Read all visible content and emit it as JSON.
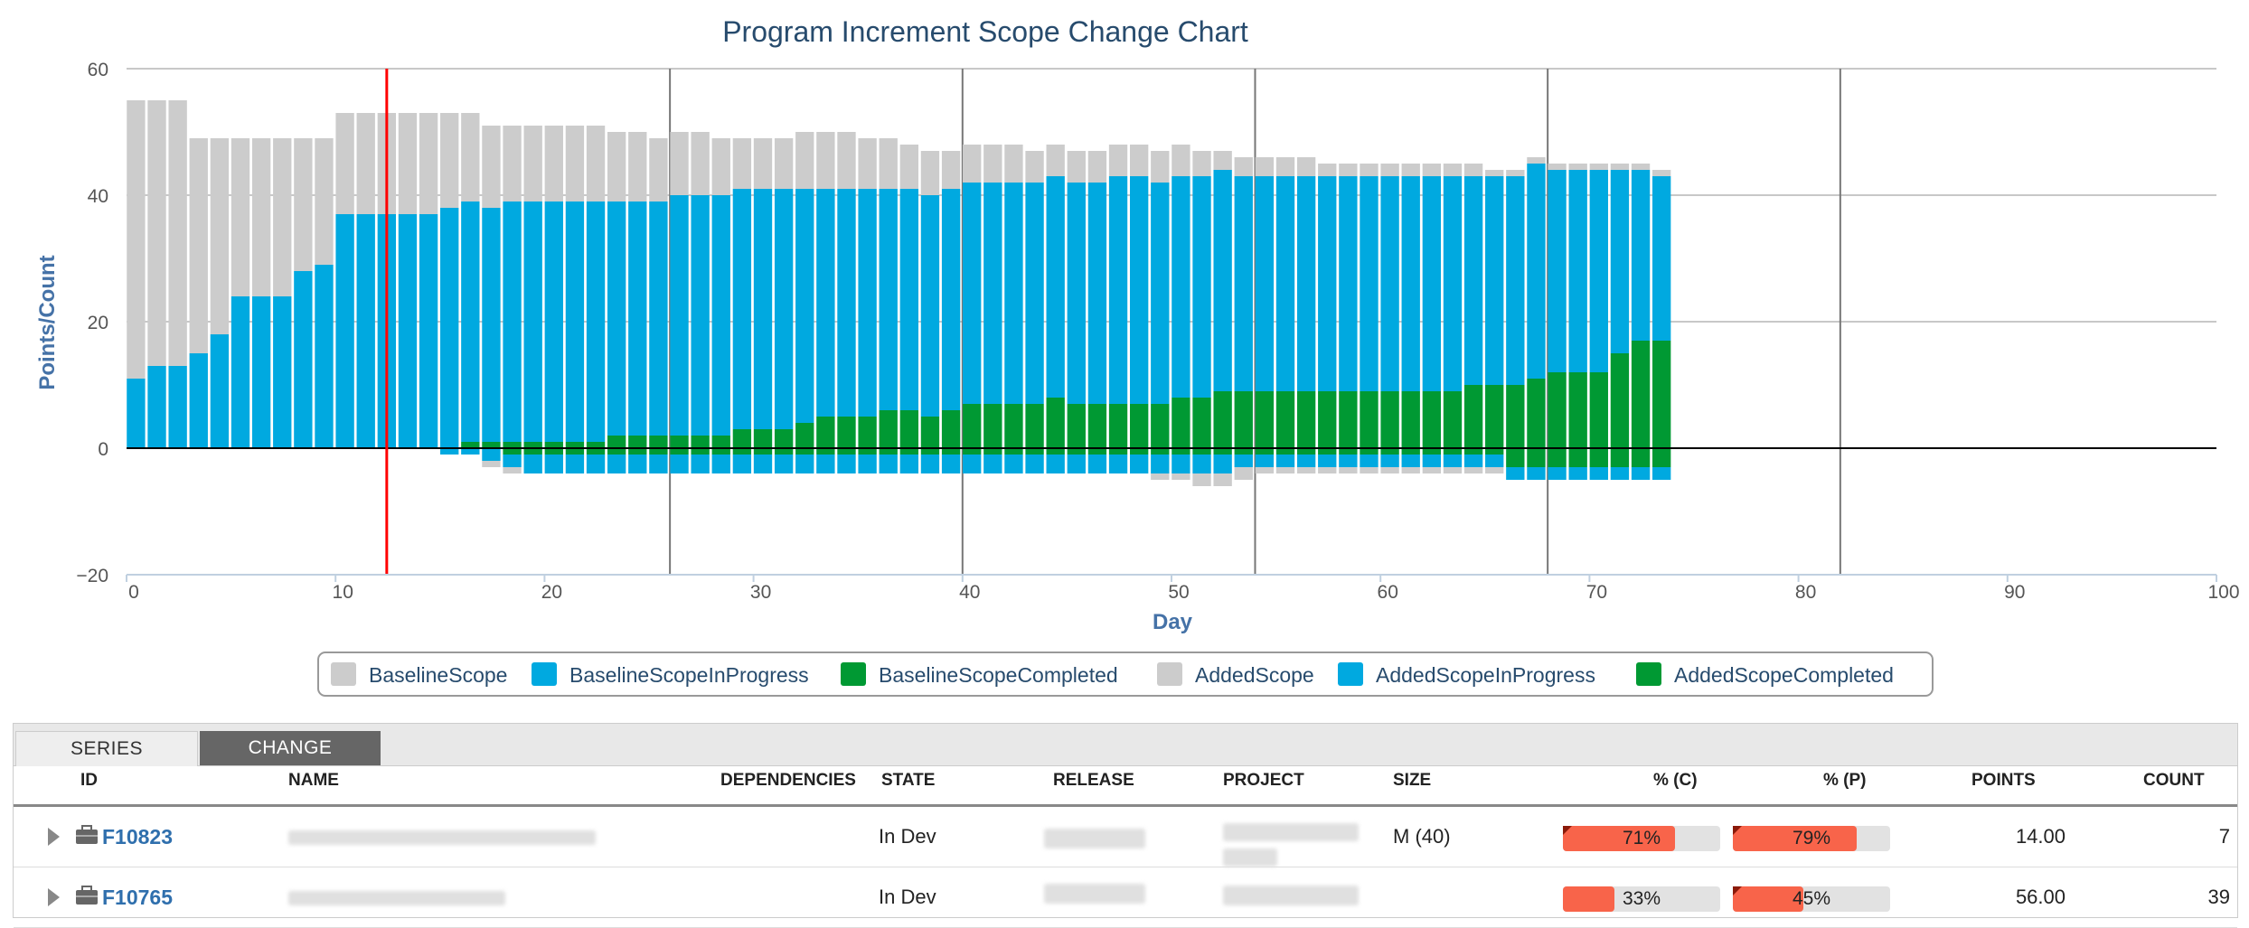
{
  "chart_data": {
    "type": "bar",
    "title": "Program Increment Scope Change Chart",
    "xlabel": "Day",
    "ylabel": "Points/Count",
    "xlim": [
      0,
      100
    ],
    "ylim": [
      -20,
      60
    ],
    "x_ticks": [
      0,
      10,
      20,
      30,
      40,
      50,
      60,
      70,
      80,
      90,
      100
    ],
    "y_ticks": [
      -20,
      0,
      20,
      40,
      60
    ],
    "legend_position": "bottom",
    "grid": true,
    "today_marker_day": 12,
    "iteration_lines_days": [
      26,
      40,
      54,
      68,
      82
    ],
    "days": [
      0,
      1,
      2,
      3,
      4,
      5,
      6,
      7,
      8,
      9,
      10,
      11,
      12,
      13,
      14,
      15,
      16,
      17,
      18,
      19,
      20,
      21,
      22,
      23,
      24,
      25,
      26,
      27,
      28,
      29,
      30,
      31,
      32,
      33,
      34,
      35,
      36,
      37,
      38,
      39,
      40,
      41,
      42,
      43,
      44,
      45,
      46,
      47,
      48,
      49,
      50,
      51,
      52,
      53,
      54,
      55,
      56,
      57,
      58,
      59,
      60,
      61,
      62,
      63,
      64,
      65,
      66,
      67,
      68,
      69,
      70,
      71,
      72,
      73
    ],
    "series": [
      {
        "name": "BaselineScope",
        "color": "#cccccc",
        "values": [
          44,
          42,
          42,
          34,
          31,
          25,
          25,
          25,
          21,
          20,
          16,
          16,
          16,
          16,
          16,
          15,
          14,
          13,
          12,
          12,
          12,
          12,
          12,
          11,
          11,
          10,
          10,
          10,
          9,
          8,
          8,
          8,
          9,
          9,
          9,
          8,
          8,
          7,
          7,
          6,
          6,
          6,
          6,
          5,
          5,
          5,
          5,
          5,
          5,
          5,
          5,
          4,
          3,
          3,
          3,
          3,
          3,
          2,
          2,
          2,
          2,
          2,
          2,
          2,
          2,
          1,
          1,
          1,
          1,
          1,
          1,
          1,
          1,
          1
        ]
      },
      {
        "name": "BaselineScopeInProgress",
        "color": "#00a9e0",
        "values": [
          11,
          13,
          13,
          15,
          18,
          24,
          24,
          24,
          28,
          29,
          37,
          37,
          37,
          37,
          37,
          38,
          38,
          37,
          38,
          38,
          38,
          38,
          38,
          37,
          37,
          37,
          38,
          38,
          38,
          38,
          38,
          38,
          37,
          36,
          36,
          36,
          35,
          35,
          35,
          35,
          35,
          35,
          35,
          35,
          35,
          35,
          35,
          36,
          36,
          35,
          35,
          35,
          35,
          34,
          34,
          34,
          34,
          34,
          34,
          34,
          34,
          34,
          34,
          34,
          33,
          33,
          33,
          34,
          32,
          32,
          32,
          29,
          27,
          26
        ]
      },
      {
        "name": "BaselineScopeCompleted",
        "color": "#009933",
        "values": [
          0,
          0,
          0,
          0,
          0,
          0,
          0,
          0,
          0,
          0,
          0,
          0,
          0,
          0,
          0,
          0,
          1,
          1,
          1,
          1,
          1,
          1,
          1,
          2,
          2,
          2,
          2,
          2,
          2,
          3,
          3,
          3,
          4,
          5,
          5,
          5,
          6,
          6,
          5,
          6,
          7,
          7,
          7,
          7,
          8,
          7,
          7,
          7,
          7,
          7,
          8,
          8,
          9,
          9,
          9,
          9,
          9,
          9,
          9,
          9,
          9,
          9,
          9,
          9,
          10,
          10,
          10,
          11,
          12,
          12,
          12,
          15,
          17,
          17
        ]
      },
      {
        "name": "AddedScope",
        "color": "#cccccc",
        "values": [
          0,
          0,
          0,
          0,
          0,
          0,
          0,
          0,
          0,
          0,
          0,
          0,
          0,
          0,
          0,
          0,
          0,
          -1,
          -1,
          0,
          0,
          0,
          0,
          0,
          0,
          0,
          0,
          0,
          0,
          0,
          0,
          0,
          0,
          0,
          0,
          0,
          0,
          0,
          0,
          0,
          0,
          0,
          0,
          0,
          0,
          0,
          0,
          0,
          0,
          -1,
          -1,
          -2,
          -2,
          -2,
          -1,
          -1,
          -1,
          -1,
          -1,
          -1,
          -1,
          -1,
          -1,
          -1,
          -1,
          -1,
          0,
          0,
          0,
          0,
          0,
          0,
          0,
          0
        ]
      },
      {
        "name": "AddedScopeInProgress",
        "color": "#00a9e0",
        "values": [
          0,
          0,
          0,
          0,
          0,
          0,
          0,
          0,
          0,
          0,
          0,
          0,
          0,
          0,
          0,
          -1,
          -1,
          -2,
          -2,
          -3,
          -3,
          -3,
          -3,
          -3,
          -3,
          -3,
          -3,
          -3,
          -3,
          -3,
          -3,
          -3,
          -3,
          -3,
          -3,
          -3,
          -3,
          -3,
          -3,
          -3,
          -3,
          -3,
          -3,
          -3,
          -3,
          -3,
          -3,
          -3,
          -3,
          -3,
          -3,
          -3,
          -3,
          -2,
          -2,
          -2,
          -2,
          -2,
          -2,
          -2,
          -2,
          -2,
          -2,
          -2,
          -2,
          -2,
          -2,
          -2,
          -2,
          -2,
          -2,
          -2,
          -2,
          -2
        ]
      },
      {
        "name": "AddedScopeCompleted",
        "color": "#009933",
        "values": [
          0,
          0,
          0,
          0,
          0,
          0,
          0,
          0,
          0,
          0,
          0,
          0,
          0,
          0,
          0,
          0,
          0,
          0,
          -1,
          -1,
          -1,
          -1,
          -1,
          -1,
          -1,
          -1,
          -1,
          -1,
          -1,
          -1,
          -1,
          -1,
          -1,
          -1,
          -1,
          -1,
          -1,
          -1,
          -1,
          -1,
          -1,
          -1,
          -1,
          -1,
          -1,
          -1,
          -1,
          -1,
          -1,
          -1,
          -1,
          -1,
          -1,
          -1,
          -1,
          -1,
          -1,
          -1,
          -1,
          -1,
          -1,
          -1,
          -1,
          -1,
          -1,
          -1,
          -3,
          -3,
          -3,
          -3,
          -3,
          -3,
          -3,
          -3
        ]
      }
    ]
  },
  "grid": {
    "tabs": [
      "SERIES",
      "CHANGE"
    ],
    "active_tab": "CHANGE",
    "columns": {
      "id": "ID",
      "name": "NAME",
      "dependencies": "DEPENDENCIES",
      "state": "STATE",
      "release": "RELEASE",
      "project": "PROJECT",
      "size": "SIZE",
      "pct_c": "% (C)",
      "pct_p": "% (P)",
      "points": "POINTS",
      "count": "COUNT"
    },
    "rows": [
      {
        "id": "F10823",
        "state": "In Dev",
        "size": "M (40)",
        "pct_c": "71%",
        "pct_c_value": 0.71,
        "pct_p": "79%",
        "pct_p_value": 0.79,
        "points": "14.00",
        "count": "7"
      },
      {
        "id": "F10765",
        "state": "In Dev",
        "size": "",
        "pct_c": "33%",
        "pct_c_value": 0.33,
        "pct_p": "45%",
        "pct_p_value": 0.45,
        "points": "56.00",
        "count": "39"
      }
    ]
  }
}
